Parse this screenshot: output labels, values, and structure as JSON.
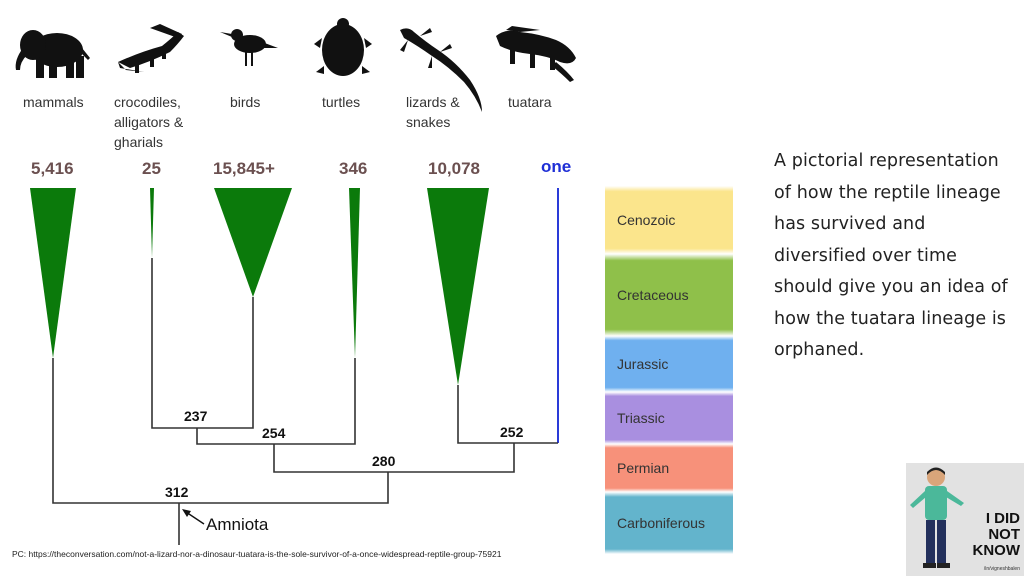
{
  "groups": [
    {
      "label": "mammals",
      "count": "5,416",
      "icon": "elephant-icon"
    },
    {
      "label": "crocodiles,\nalligators &\ngharials",
      "count": "25",
      "icon": "crocodile-icon"
    },
    {
      "label": "birds",
      "count": "15,845+",
      "icon": "bird-icon"
    },
    {
      "label": "turtles",
      "count": "346",
      "icon": "turtle-icon"
    },
    {
      "label": "lizards &\nsnakes",
      "count": "10,078",
      "icon": "lizard-icon"
    },
    {
      "label": "tuatara",
      "count": "one",
      "icon": "tuatara-icon"
    }
  ],
  "nodes": {
    "n237": "237",
    "n254": "254",
    "n280": "280",
    "n252": "252",
    "n312": "312"
  },
  "amniota": "Amniota",
  "eras": [
    {
      "name": "Cenozoic",
      "color": "#fbe58c"
    },
    {
      "name": "Cretaceous",
      "color": "#8fc04a"
    },
    {
      "name": "Jurassic",
      "color": "#6fb0ef"
    },
    {
      "name": "Triassic",
      "color": "#a98fe0"
    },
    {
      "name": "Permian",
      "color": "#f7917a"
    },
    {
      "name": "Carboniferous",
      "color": "#63b4cc"
    }
  ],
  "description": "A pictorial representation of how the reptile lineage has survived and diversified over time should give you an idea of how the tuatara lineage is orphaned.",
  "credit": "PC: https://theconversation.com/not-a-lizard-nor-a-dinosaur-tuatara-is-the-sole-survivor-of-a-once-widespread-reptile-group-75921",
  "logo": {
    "text": "I DID\nNOT\nKNOW",
    "handle": "/in/vigneshbalen"
  },
  "colors": {
    "lineage": "#0b7a0b",
    "tuatara_line": "#2a3bd8",
    "count": "#6b5050"
  }
}
